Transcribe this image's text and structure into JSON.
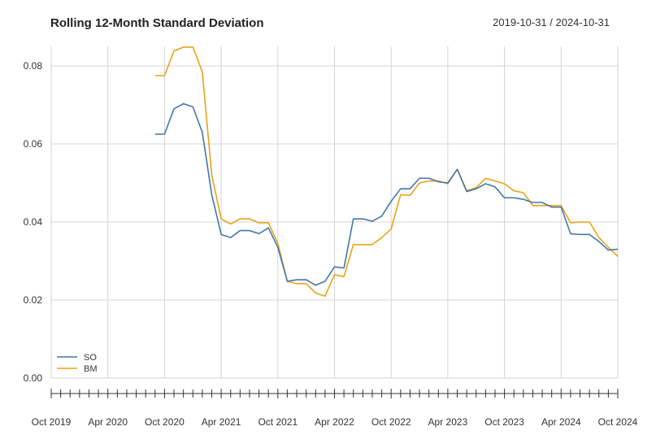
{
  "chart_data": {
    "type": "line",
    "title": "Rolling 12-Month Standard Deviation",
    "date_range": "2019-10-31 / 2024-10-31",
    "xlabel": "",
    "ylabel": "",
    "x_start": "2019-10",
    "x_end": "2024-10",
    "x_tick_labels": [
      "Oct 2019",
      "Apr 2020",
      "Oct 2020",
      "Apr 2021",
      "Oct 2021",
      "Apr 2022",
      "Oct 2022",
      "Apr 2023",
      "Oct 2023",
      "Apr 2024",
      "Oct 2024"
    ],
    "y_tick_labels": [
      "0.00",
      "0.02",
      "0.04",
      "0.06",
      "0.08"
    ],
    "ylim": [
      0,
      0.085
    ],
    "grid": true,
    "legend_position": "bottom-left",
    "x": [
      "2020-09",
      "2020-10",
      "2020-11",
      "2020-12",
      "2021-01",
      "2021-02",
      "2021-03",
      "2021-04",
      "2021-05",
      "2021-06",
      "2021-07",
      "2021-08",
      "2021-09",
      "2021-10",
      "2021-11",
      "2021-12",
      "2022-01",
      "2022-02",
      "2022-03",
      "2022-04",
      "2022-05",
      "2022-06",
      "2022-07",
      "2022-08",
      "2022-09",
      "2022-10",
      "2022-11",
      "2022-12",
      "2023-01",
      "2023-02",
      "2023-03",
      "2023-04",
      "2023-05",
      "2023-06",
      "2023-07",
      "2023-08",
      "2023-09",
      "2023-10",
      "2023-11",
      "2023-12",
      "2024-01",
      "2024-02",
      "2024-03",
      "2024-04",
      "2024-05",
      "2024-06",
      "2024-07",
      "2024-08",
      "2024-09",
      "2024-10"
    ],
    "series": [
      {
        "name": "SO",
        "color": "#4477aa",
        "values": [
          0.0625,
          0.0625,
          0.069,
          0.0703,
          0.0695,
          0.063,
          0.047,
          0.0368,
          0.036,
          0.0378,
          0.0378,
          0.037,
          0.0385,
          0.0335,
          0.0248,
          0.0252,
          0.0252,
          0.0238,
          0.0248,
          0.0285,
          0.0282,
          0.0408,
          0.0408,
          0.0402,
          0.0415,
          0.0453,
          0.0485,
          0.0485,
          0.0512,
          0.0512,
          0.0503,
          0.05,
          0.0535,
          0.0478,
          0.0485,
          0.0498,
          0.049,
          0.0462,
          0.0462,
          0.0458,
          0.045,
          0.045,
          0.0438,
          0.0438,
          0.037,
          0.0368,
          0.0368,
          0.035,
          0.0328,
          0.033
        ]
      },
      {
        "name": "BM",
        "color": "#e8a317",
        "values": [
          0.0775,
          0.0775,
          0.0838,
          0.0848,
          0.0848,
          0.0785,
          0.052,
          0.0408,
          0.0395,
          0.0408,
          0.0408,
          0.0398,
          0.0398,
          0.0345,
          0.0248,
          0.0242,
          0.0242,
          0.0218,
          0.021,
          0.0265,
          0.026,
          0.0342,
          0.0342,
          0.0342,
          0.036,
          0.0382,
          0.047,
          0.0468,
          0.05,
          0.0505,
          0.0505,
          0.0498,
          0.0535,
          0.048,
          0.0488,
          0.0512,
          0.0505,
          0.0498,
          0.048,
          0.0475,
          0.0442,
          0.0442,
          0.0442,
          0.0442,
          0.0398,
          0.04,
          0.04,
          0.036,
          0.0335,
          0.0312
        ]
      }
    ]
  }
}
